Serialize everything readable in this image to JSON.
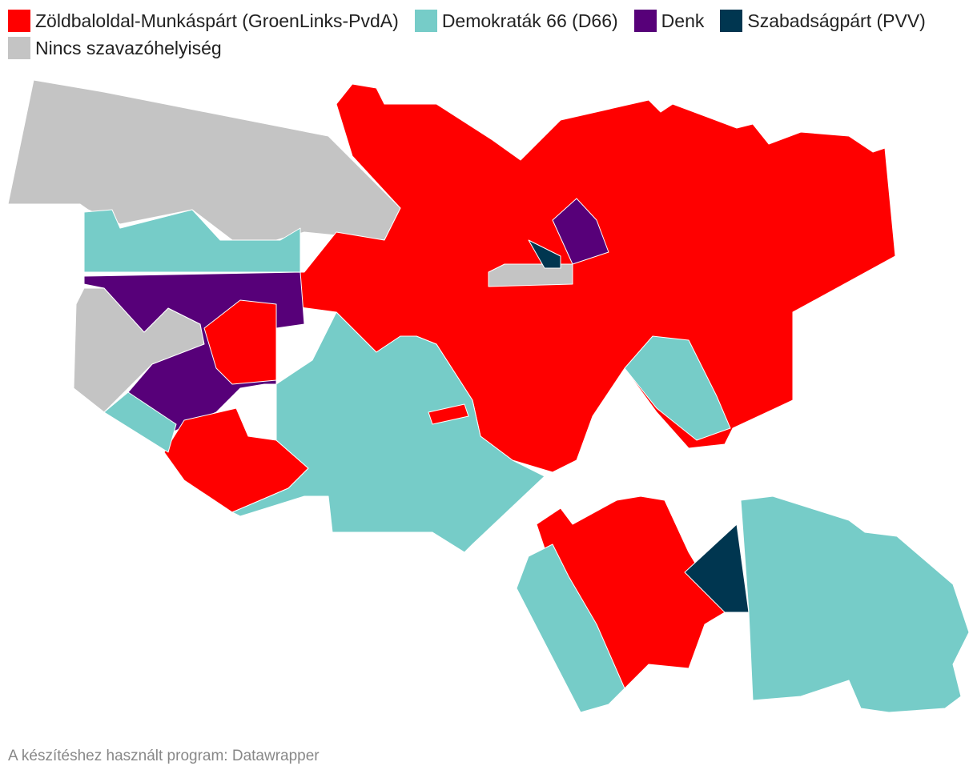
{
  "legend": {
    "items": [
      {
        "label": "Zöldbaloldal-Munkáspárt (GroenLinks-PvdA)",
        "color": "#ff0000"
      },
      {
        "label": "Demokraták 66 (D66)",
        "color": "#76ccc8"
      },
      {
        "label": "Denk",
        "color": "#570079"
      },
      {
        "label": "Szabadságpárt (PVV)",
        "color": "#003650"
      },
      {
        "label": "Nincs szavazóhelyiség",
        "color": "#c4c4c4"
      }
    ]
  },
  "footer": {
    "text": "A készítéshez használt program: Datawrapper"
  }
}
